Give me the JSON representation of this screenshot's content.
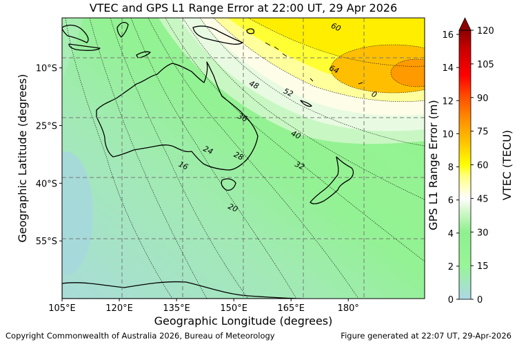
{
  "title": "VTEC and GPS L1 Range Error at 22:00 UT, 29 Apr 2026",
  "map": {
    "xlabel": "Geographic Longitude (degrees)",
    "ylabel": "Geographic Latitude (degrees)",
    "lon_range": [
      105,
      200
    ],
    "lat_range": [
      -70,
      3
    ],
    "x_ticks": [
      {
        "value": 105,
        "label": "105°E"
      },
      {
        "value": 120,
        "label": "120°E"
      },
      {
        "value": 135,
        "label": "135°E"
      },
      {
        "value": 150,
        "label": "150°E"
      },
      {
        "value": 165,
        "label": "165°E"
      },
      {
        "value": 180,
        "label": "180°"
      }
    ],
    "y_ticks": [
      {
        "value": -10,
        "label": "10°S"
      },
      {
        "value": -25,
        "label": "25°S"
      },
      {
        "value": -40,
        "label": "40°S"
      },
      {
        "value": -55,
        "label": "55°S"
      }
    ],
    "grid": true,
    "contour_labels": [
      {
        "text": "60",
        "lon": 176.5,
        "lat": 0.0
      },
      {
        "text": "64",
        "lon": 176.0,
        "lat": -11.0
      },
      {
        "text": "0",
        "lon": 186.5,
        "lat": -17.5
      },
      {
        "text": "52",
        "lon": 164.0,
        "lat": -17.0
      },
      {
        "text": "48",
        "lon": 155.0,
        "lat": -15.0
      },
      {
        "text": "40",
        "lon": 166.0,
        "lat": -28.0
      },
      {
        "text": "36",
        "lon": 152.0,
        "lat": -23.5
      },
      {
        "text": "32",
        "lon": 167.0,
        "lat": -36.0
      },
      {
        "text": "28",
        "lon": 151.0,
        "lat": -33.5
      },
      {
        "text": "24",
        "lon": 143.0,
        "lat": -32.0
      },
      {
        "text": "16",
        "lon": 136.5,
        "lat": -36.0
      },
      {
        "text": "20",
        "lon": 149.5,
        "lat": -47.0
      }
    ]
  },
  "colorbar": {
    "vtec_label": "VTEC (TECU)",
    "range_label": "GPS L1 Range Error (m)",
    "vtec_ticks": [
      0,
      15,
      30,
      45,
      60,
      75,
      90,
      105,
      120
    ],
    "range_ticks": [
      0,
      2,
      4,
      6,
      8,
      10,
      12,
      14,
      16
    ],
    "vtec_max": 120,
    "range_max": 16.25,
    "colors": [
      {
        "v": 0,
        "c": "#add8e6"
      },
      {
        "v": 15,
        "c": "#98f598"
      },
      {
        "v": 30,
        "c": "#8ff08f"
      },
      {
        "v": 40,
        "c": "#d8f8d0"
      },
      {
        "v": 45,
        "c": "#ffffff"
      },
      {
        "v": 55,
        "c": "#ffff80"
      },
      {
        "v": 60,
        "c": "#ffff00"
      },
      {
        "v": 70,
        "c": "#ffc400"
      },
      {
        "v": 80,
        "c": "#ff9000"
      },
      {
        "v": 90,
        "c": "#ff5000"
      },
      {
        "v": 100,
        "c": "#ff0000"
      },
      {
        "v": 112,
        "c": "#c80000"
      },
      {
        "v": 120,
        "c": "#8b0000"
      }
    ]
  },
  "footer": {
    "copyright": "Copyright Commonwealth of Australia 2026, Bureau of Meteorology",
    "generated": "Figure generated at 22:07 UT, 29-Apr-2026"
  }
}
